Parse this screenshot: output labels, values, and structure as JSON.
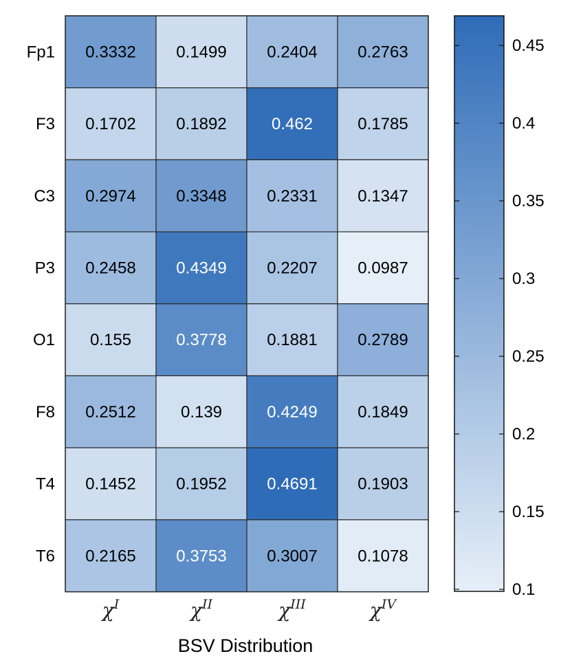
{
  "chart_data": {
    "type": "heatmap",
    "rows": [
      "Fp1",
      "F3",
      "C3",
      "P3",
      "O1",
      "F8",
      "T4",
      "T6"
    ],
    "columns": [
      {
        "base": "χ",
        "sup": "I"
      },
      {
        "base": "χ",
        "sup": "II"
      },
      {
        "base": "χ",
        "sup": "III"
      },
      {
        "base": "χ",
        "sup": "IV"
      }
    ],
    "values": [
      [
        0.3332,
        0.1499,
        0.2404,
        0.2763
      ],
      [
        0.1702,
        0.1892,
        0.462,
        0.1785
      ],
      [
        0.2974,
        0.3348,
        0.2331,
        0.1347
      ],
      [
        0.2458,
        0.4349,
        0.2207,
        0.0987
      ],
      [
        0.155,
        0.3778,
        0.1881,
        0.2789
      ],
      [
        0.2512,
        0.139,
        0.4249,
        0.1849
      ],
      [
        0.1452,
        0.1952,
        0.4691,
        0.1903
      ],
      [
        0.2165,
        0.3753,
        0.3007,
        0.1078
      ]
    ],
    "cell_labels": [
      [
        "0.3332",
        "0.1499",
        "0.2404",
        "0.2763"
      ],
      [
        "0.1702",
        "0.1892",
        "0.462",
        "0.1785"
      ],
      [
        "0.2974",
        "0.3348",
        "0.2331",
        "0.1347"
      ],
      [
        "0.2458",
        "0.4349",
        "0.2207",
        "0.0987"
      ],
      [
        "0.155",
        "0.3778",
        "0.1881",
        "0.2789"
      ],
      [
        "0.2512",
        "0.139",
        "0.4249",
        "0.1849"
      ],
      [
        "0.1452",
        "0.1952",
        "0.4691",
        "0.1903"
      ],
      [
        "0.2165",
        "0.3753",
        "0.3007",
        "0.1078"
      ]
    ],
    "xlabel": "BSV Distribution",
    "colorbar": {
      "range": [
        0.0987,
        0.4691
      ],
      "ticks": [
        0.1,
        0.15,
        0.2,
        0.25,
        0.3,
        0.35,
        0.4,
        0.45
      ],
      "tick_labels": [
        "0.1",
        "0.15",
        "0.2",
        "0.25",
        "0.3",
        "0.35",
        "0.4",
        "0.45"
      ],
      "color_low": "#e6eff8",
      "color_high": "#2f6cb8"
    },
    "text_color_dark": "#000000",
    "text_color_light": "#ffffff",
    "grid_color": "#2b2b2b"
  }
}
